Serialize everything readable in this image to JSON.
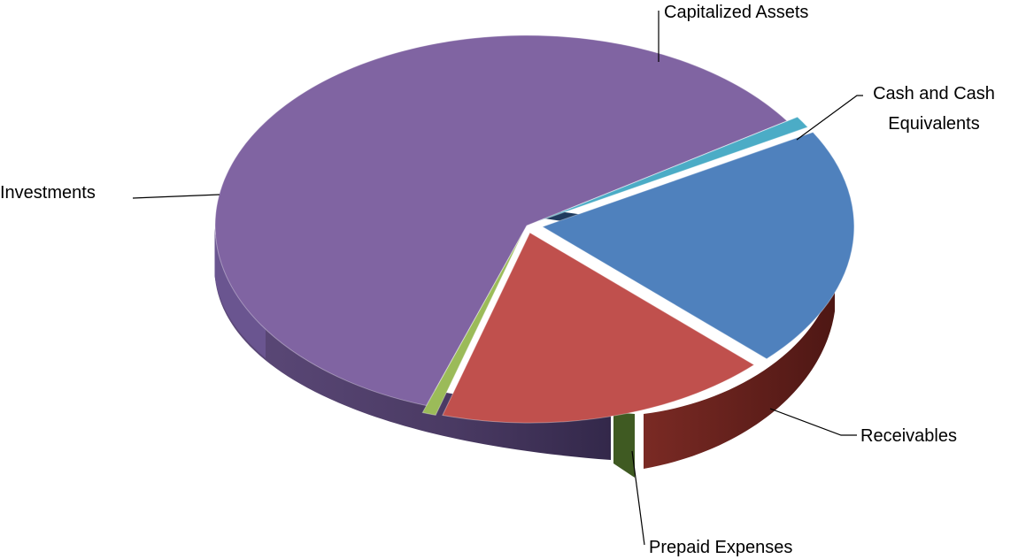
{
  "chart_data": {
    "type": "pie",
    "style": "3d-exploded",
    "slices": [
      {
        "label": "Cash and Cash Equivalents",
        "value": 20.5,
        "color": "#4f81bd"
      },
      {
        "label": "Receivables",
        "value": 17.3,
        "color": "#c0504d"
      },
      {
        "label": "Prepaid Expenses",
        "value": 0.7,
        "color": "#9bbb59"
      },
      {
        "label": "Investments",
        "value": 60.5,
        "color": "#8064a2"
      },
      {
        "label": "Capitalized Assets",
        "value": 1.0,
        "color": "#4bacc6"
      }
    ],
    "legend": "none",
    "labels_placement": "outside-with-leader-lines"
  }
}
